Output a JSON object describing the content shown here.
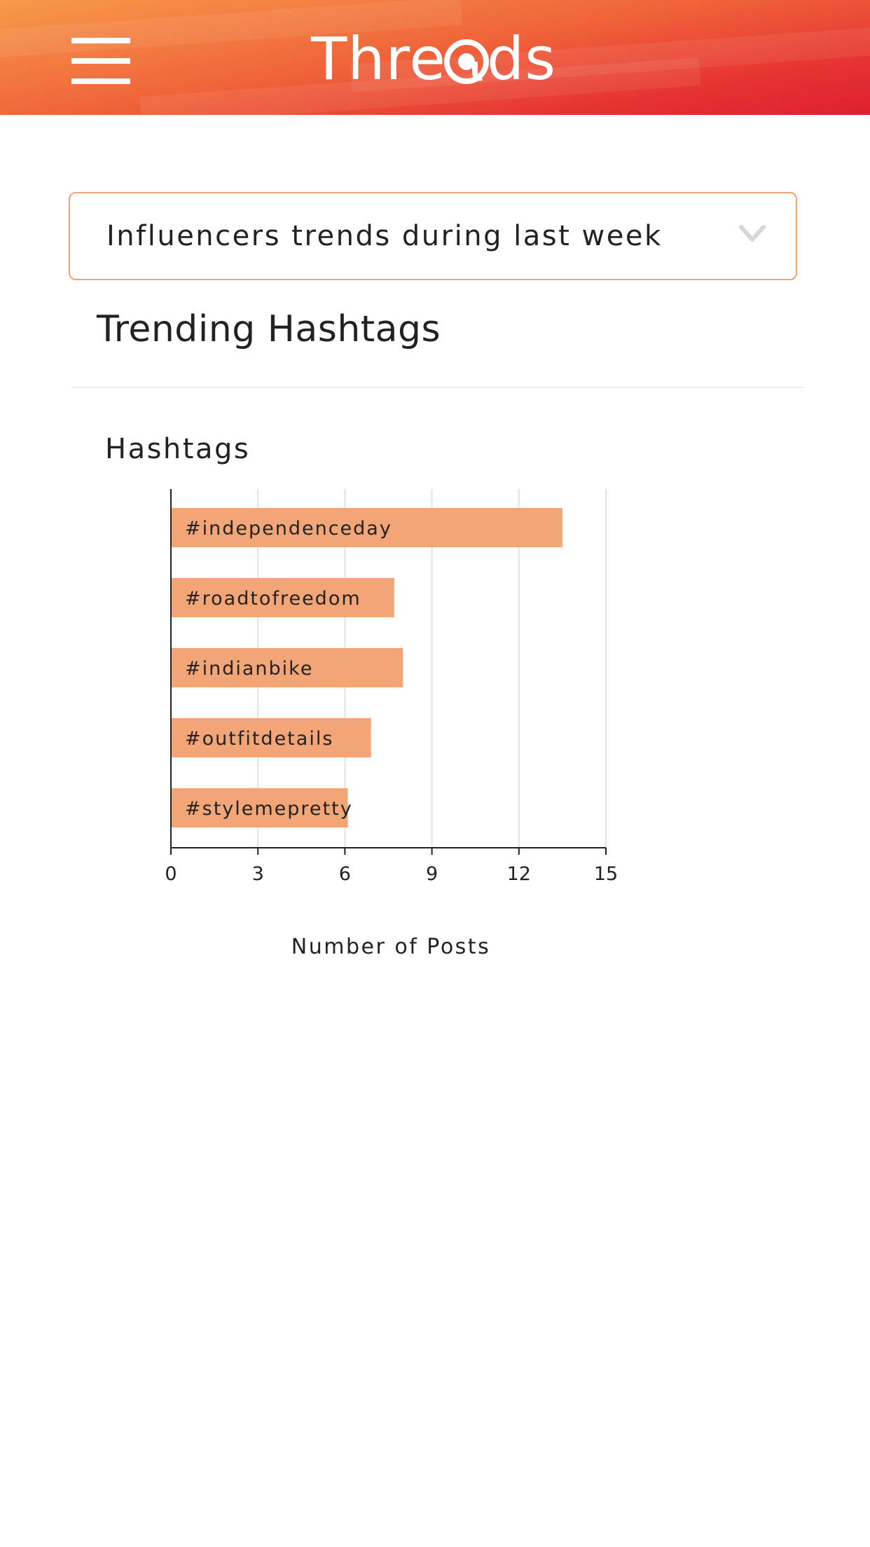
{
  "header": {
    "app_name": "Threads",
    "menu_icon": "hamburger-menu-icon",
    "logo_icon": "at-sign-icon",
    "accent_color": "#f0663a"
  },
  "filter": {
    "selected": "Influencers trends during last week",
    "icon": "chevron-down-icon"
  },
  "section": {
    "title": "Trending Hashtags"
  },
  "chart_data": {
    "type": "bar",
    "orientation": "horizontal",
    "title": "Hashtags",
    "xlabel": "Number of Posts",
    "ylabel": "",
    "categories": [
      "#independenceday",
      "#roadtofreedom",
      "#indianbike",
      "#outfitdetails",
      "#stylemepretty"
    ],
    "values": [
      13.5,
      7.7,
      8,
      6.9,
      6.1
    ],
    "xlim": [
      0,
      15
    ],
    "xticks": [
      "0",
      "3",
      "6",
      "9",
      "12",
      "15"
    ],
    "xtick_values": [
      0,
      3,
      6,
      9,
      12,
      15
    ],
    "grid": true,
    "bar_color": "#f2a577"
  }
}
